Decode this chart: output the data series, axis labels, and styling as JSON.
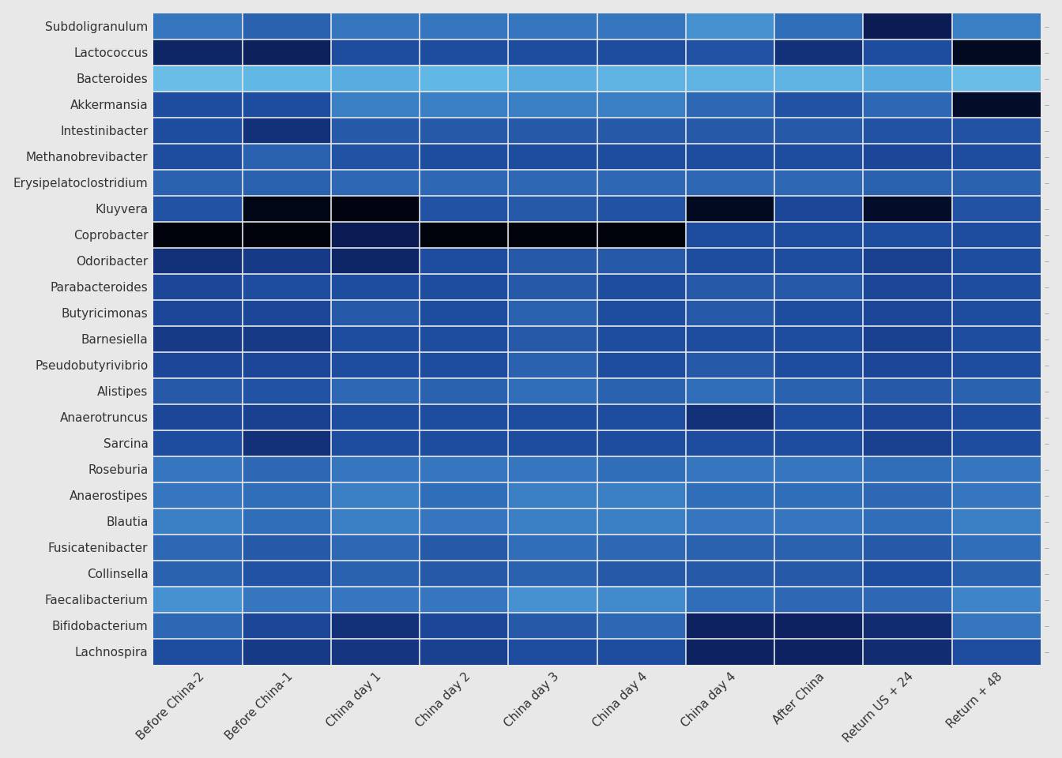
{
  "rows": [
    "Subdoligranulum",
    "Lactococcus",
    "Bacteroides",
    "Akkermansia",
    "Intestinibacter",
    "Methanobrevibacter",
    "Erysipelatoclostridium",
    "Kluyvera",
    "Coprobacter",
    "Odoribacter",
    "Parabacteroides",
    "Butyricimonas",
    "Barnesiella",
    "Pseudobutyrivibrio",
    "Alistipes",
    "Anaerotruncus",
    "Sarcina",
    "Roseburia",
    "Anaerostipes",
    "Blautia",
    "Fusicatenibacter",
    "Collinsella",
    "Faecalibacterium",
    "Bifidobacterium",
    "Lachnospira"
  ],
  "cols": [
    "Before China-2",
    "Before China-1",
    "China day 1",
    "China day 2",
    "China day 3",
    "China day 4",
    "China day 4",
    "After China",
    "Return US + 24",
    "Return + 48"
  ],
  "matrix": [
    [
      0.65,
      0.58,
      0.65,
      0.65,
      0.65,
      0.65,
      0.75,
      0.62,
      0.25,
      0.68
    ],
    [
      0.32,
      0.28,
      0.5,
      0.5,
      0.5,
      0.5,
      0.52,
      0.38,
      0.5,
      0.08
    ],
    [
      0.92,
      0.9,
      0.85,
      0.9,
      0.85,
      0.88,
      0.88,
      0.88,
      0.85,
      0.92
    ],
    [
      0.5,
      0.5,
      0.68,
      0.68,
      0.68,
      0.68,
      0.6,
      0.52,
      0.6,
      0.1
    ],
    [
      0.5,
      0.38,
      0.55,
      0.55,
      0.55,
      0.55,
      0.55,
      0.55,
      0.52,
      0.52
    ],
    [
      0.5,
      0.58,
      0.52,
      0.5,
      0.5,
      0.5,
      0.5,
      0.5,
      0.48,
      0.5
    ],
    [
      0.58,
      0.58,
      0.6,
      0.6,
      0.6,
      0.6,
      0.6,
      0.6,
      0.58,
      0.58
    ],
    [
      0.52,
      0.05,
      0.03,
      0.52,
      0.55,
      0.52,
      0.08,
      0.48,
      0.1,
      0.52
    ],
    [
      0.02,
      0.02,
      0.25,
      0.02,
      0.02,
      0.02,
      0.5,
      0.5,
      0.5,
      0.5
    ],
    [
      0.38,
      0.42,
      0.32,
      0.5,
      0.55,
      0.55,
      0.5,
      0.5,
      0.45,
      0.5
    ],
    [
      0.48,
      0.5,
      0.5,
      0.5,
      0.55,
      0.5,
      0.55,
      0.55,
      0.48,
      0.5
    ],
    [
      0.48,
      0.48,
      0.55,
      0.5,
      0.58,
      0.5,
      0.55,
      0.5,
      0.48,
      0.5
    ],
    [
      0.42,
      0.42,
      0.5,
      0.5,
      0.55,
      0.5,
      0.5,
      0.5,
      0.45,
      0.5
    ],
    [
      0.48,
      0.48,
      0.5,
      0.5,
      0.58,
      0.5,
      0.55,
      0.5,
      0.48,
      0.5
    ],
    [
      0.55,
      0.52,
      0.6,
      0.58,
      0.62,
      0.58,
      0.62,
      0.58,
      0.55,
      0.58
    ],
    [
      0.48,
      0.45,
      0.5,
      0.5,
      0.5,
      0.5,
      0.38,
      0.5,
      0.48,
      0.5
    ],
    [
      0.5,
      0.38,
      0.5,
      0.5,
      0.5,
      0.5,
      0.5,
      0.5,
      0.45,
      0.5
    ],
    [
      0.65,
      0.6,
      0.65,
      0.65,
      0.65,
      0.62,
      0.65,
      0.65,
      0.62,
      0.65
    ],
    [
      0.65,
      0.62,
      0.68,
      0.62,
      0.68,
      0.68,
      0.62,
      0.62,
      0.6,
      0.65
    ],
    [
      0.68,
      0.62,
      0.68,
      0.65,
      0.68,
      0.68,
      0.65,
      0.65,
      0.62,
      0.68
    ],
    [
      0.6,
      0.55,
      0.6,
      0.55,
      0.62,
      0.6,
      0.58,
      0.58,
      0.55,
      0.62
    ],
    [
      0.58,
      0.52,
      0.58,
      0.55,
      0.58,
      0.55,
      0.55,
      0.55,
      0.5,
      0.58
    ],
    [
      0.75,
      0.65,
      0.65,
      0.65,
      0.75,
      0.72,
      0.62,
      0.6,
      0.6,
      0.7
    ],
    [
      0.6,
      0.48,
      0.38,
      0.48,
      0.55,
      0.6,
      0.3,
      0.3,
      0.35,
      0.65
    ],
    [
      0.5,
      0.42,
      0.4,
      0.45,
      0.5,
      0.5,
      0.3,
      0.3,
      0.35,
      0.5
    ]
  ],
  "background_color": "#e8e8e8",
  "cmap_colors": [
    "#000005",
    "#030d2a",
    "#071645",
    "#0d2260",
    "#153580",
    "#1e4c9e",
    "#2e68b5",
    "#3d84c8",
    "#4fa0d8",
    "#62b8e5",
    "#82cef0"
  ],
  "figsize": [
    13.44,
    9.6
  ],
  "dpi": 100,
  "xlabel_fontsize": 11,
  "ylabel_fontsize": 11
}
